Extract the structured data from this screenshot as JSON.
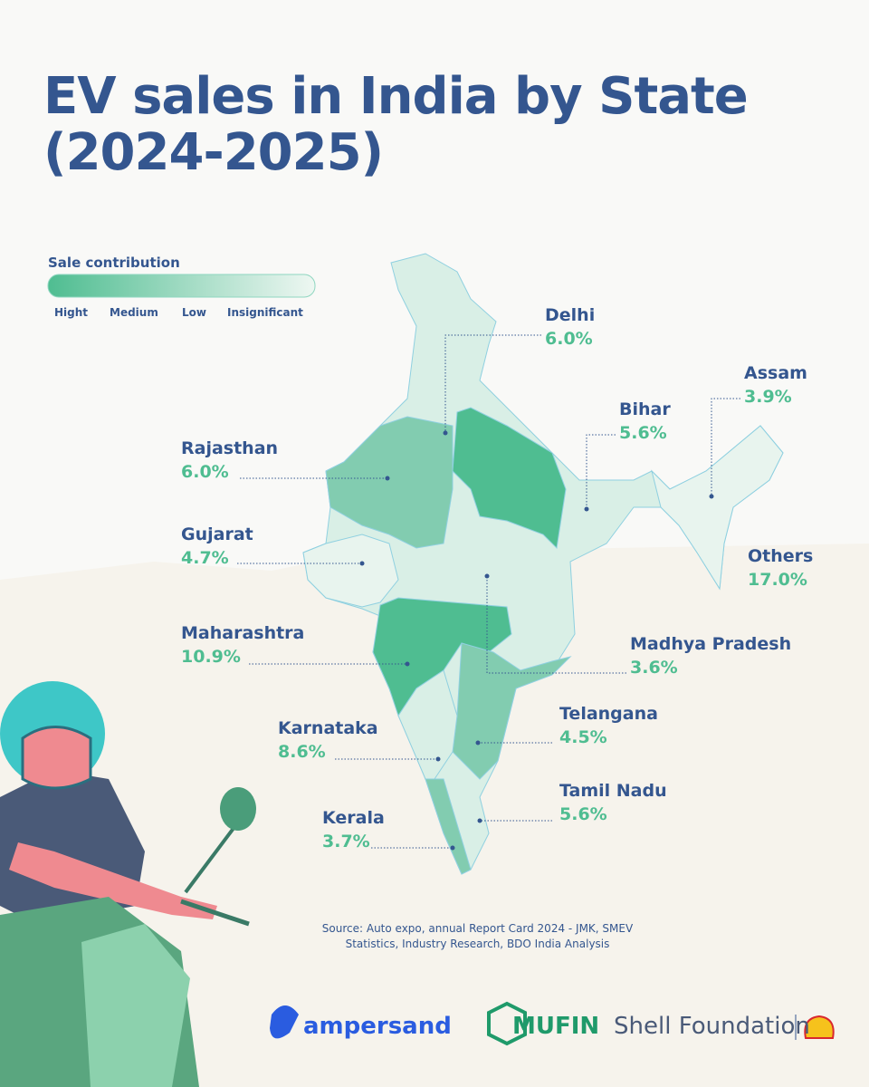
{
  "header": {
    "title_line1": "EV sales in India by State",
    "title_line2": "(2024-2025)"
  },
  "legend": {
    "title": "Sale contribution",
    "levels": [
      "Hight",
      "Medium",
      "Low",
      "Insignificant"
    ]
  },
  "states": [
    {
      "name": "Delhi",
      "share": "6.0%"
    },
    {
      "name": "Assam",
      "share": "3.9%"
    },
    {
      "name": "Bihar",
      "share": "5.6%"
    },
    {
      "name": "Rajasthan",
      "share": "6.0%"
    },
    {
      "name": "Gujarat",
      "share": "4.7%"
    },
    {
      "name": "Others",
      "share": "17.0%"
    },
    {
      "name": "Maharashtra",
      "share": "10.9%"
    },
    {
      "name": "Madhya Pradesh",
      "share": "3.6%"
    },
    {
      "name": "Telangana",
      "share": "4.5%"
    },
    {
      "name": "Karnataka",
      "share": "8.6%"
    },
    {
      "name": "Tamil Nadu",
      "share": "5.6%"
    },
    {
      "name": "Kerala",
      "share": "3.7%"
    }
  ],
  "source": "Source: Auto expo, annual Report Card 2024 - JMK, SMEV Statistics, Industry Research, BDO India Analysis",
  "logos": [
    "ampersand",
    "MUFIN",
    "Shell Foundation"
  ]
}
